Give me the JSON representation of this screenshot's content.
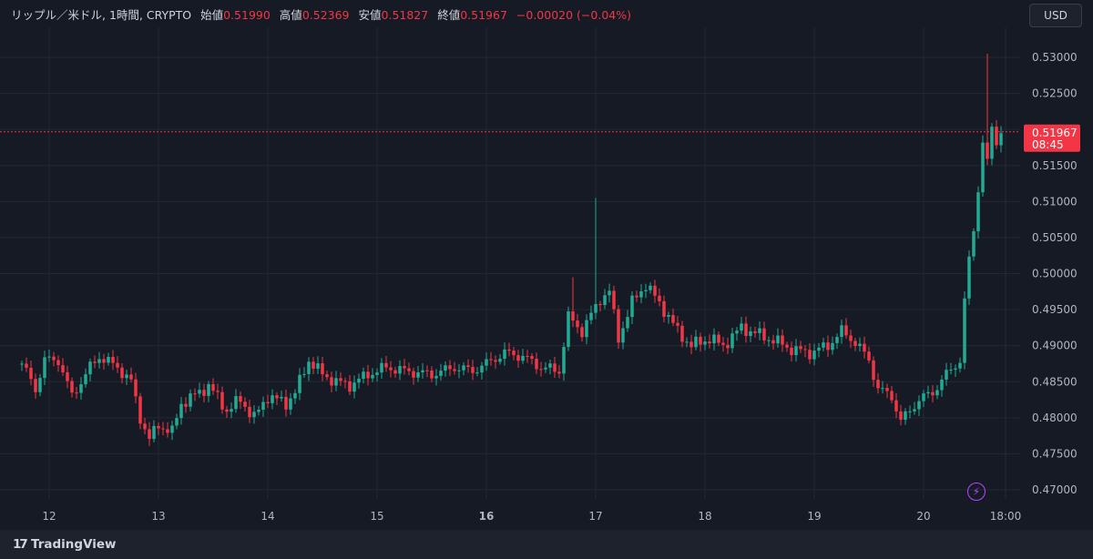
{
  "header": {
    "symbol": "リップル／米ドル, 1時間, CRYPTO",
    "open_label": "始値",
    "open_value": "0.51990",
    "high_label": "高値",
    "high_value": "0.52369",
    "low_label": "安値",
    "low_value": "0.51827",
    "close_label": "終値",
    "close_value": "0.51967",
    "change": "−0.00020 (−0.04%)"
  },
  "currency_button": "USD",
  "brand": "TradingView",
  "brand_logo": "17",
  "icons": {
    "bolt": "lightning-icon"
  },
  "colors": {
    "up": "#22ab94",
    "down": "#f23645",
    "background": "#161a25",
    "grid": "#242833",
    "last_price_tag": "#f23645"
  },
  "chart_data": {
    "type": "candlestick",
    "timeframe": "1h",
    "y_ticks": [
      "0.53000",
      "0.52500",
      "0.52000",
      "0.51500",
      "0.51000",
      "0.50500",
      "0.50000",
      "0.49500",
      "0.49000",
      "0.48500",
      "0.48000",
      "0.47500",
      "0.47000"
    ],
    "ylim": [
      0.4685,
      0.5345
    ],
    "x_ticks": [
      {
        "label": "12",
        "bold": false,
        "hour": 6
      },
      {
        "label": "13",
        "bold": false,
        "hour": 30
      },
      {
        "label": "14",
        "bold": false,
        "hour": 54
      },
      {
        "label": "15",
        "bold": false,
        "hour": 78
      },
      {
        "label": "16",
        "bold": true,
        "hour": 102
      },
      {
        "label": "17",
        "bold": false,
        "hour": 126
      },
      {
        "label": "18",
        "bold": false,
        "hour": 150
      },
      {
        "label": "19",
        "bold": false,
        "hour": 174
      },
      {
        "label": "20",
        "bold": false,
        "hour": 198
      },
      {
        "label": "18:00",
        "bold": false,
        "hour": 216
      }
    ],
    "last_price": "0.51967",
    "countdown": "08:45",
    "anchors": [
      {
        "t": 0,
        "p": 0.4875
      },
      {
        "t": 3,
        "p": 0.484
      },
      {
        "t": 5,
        "p": 0.488
      },
      {
        "t": 8,
        "p": 0.488
      },
      {
        "t": 11,
        "p": 0.483
      },
      {
        "t": 15,
        "p": 0.487
      },
      {
        "t": 17,
        "p": 0.4885
      },
      {
        "t": 21,
        "p": 0.487
      },
      {
        "t": 24,
        "p": 0.485
      },
      {
        "t": 26,
        "p": 0.48
      },
      {
        "t": 28,
        "p": 0.477
      },
      {
        "t": 30,
        "p": 0.479
      },
      {
        "t": 33,
        "p": 0.478
      },
      {
        "t": 35,
        "p": 0.482
      },
      {
        "t": 39,
        "p": 0.4835
      },
      {
        "t": 41,
        "p": 0.4845
      },
      {
        "t": 45,
        "p": 0.481
      },
      {
        "t": 48,
        "p": 0.4825
      },
      {
        "t": 51,
        "p": 0.48
      },
      {
        "t": 54,
        "p": 0.483
      },
      {
        "t": 58,
        "p": 0.482
      },
      {
        "t": 60,
        "p": 0.4835
      },
      {
        "t": 63,
        "p": 0.488
      },
      {
        "t": 66,
        "p": 0.486
      },
      {
        "t": 69,
        "p": 0.485
      },
      {
        "t": 72,
        "p": 0.4845
      },
      {
        "t": 76,
        "p": 0.486
      },
      {
        "t": 80,
        "p": 0.487
      },
      {
        "t": 84,
        "p": 0.4865
      },
      {
        "t": 90,
        "p": 0.486
      },
      {
        "t": 95,
        "p": 0.487
      },
      {
        "t": 99,
        "p": 0.4865
      },
      {
        "t": 102,
        "p": 0.4875
      },
      {
        "t": 106,
        "p": 0.489
      },
      {
        "t": 110,
        "p": 0.4885
      },
      {
        "t": 114,
        "p": 0.487
      },
      {
        "t": 118,
        "p": 0.4865
      },
      {
        "t": 120,
        "p": 0.494
      },
      {
        "t": 123,
        "p": 0.492
      },
      {
        "t": 127,
        "p": 0.4965
      },
      {
        "t": 129,
        "p": 0.4975
      },
      {
        "t": 131,
        "p": 0.491
      },
      {
        "t": 134,
        "p": 0.496
      },
      {
        "t": 137,
        "p": 0.4985
      },
      {
        "t": 141,
        "p": 0.495
      },
      {
        "t": 144,
        "p": 0.492
      },
      {
        "t": 147,
        "p": 0.49
      },
      {
        "t": 151,
        "p": 0.491
      },
      {
        "t": 154,
        "p": 0.49
      },
      {
        "t": 158,
        "p": 0.4925
      },
      {
        "t": 162,
        "p": 0.4915
      },
      {
        "t": 166,
        "p": 0.4905
      },
      {
        "t": 169,
        "p": 0.4895
      },
      {
        "t": 173,
        "p": 0.489
      },
      {
        "t": 177,
        "p": 0.49
      },
      {
        "t": 180,
        "p": 0.492
      },
      {
        "t": 183,
        "p": 0.4905
      },
      {
        "t": 186,
        "p": 0.488
      },
      {
        "t": 188,
        "p": 0.484
      },
      {
        "t": 191,
        "p": 0.483
      },
      {
        "t": 193,
        "p": 0.4795
      },
      {
        "t": 195,
        "p": 0.481
      },
      {
        "t": 197,
        "p": 0.4825
      },
      {
        "t": 200,
        "p": 0.4835
      },
      {
        "t": 203,
        "p": 0.486
      },
      {
        "t": 206,
        "p": 0.488
      },
      {
        "t": 207,
        "p": 0.496
      },
      {
        "t": 208,
        "p": 0.502
      },
      {
        "t": 209,
        "p": 0.506
      },
      {
        "t": 210,
        "p": 0.512
      },
      {
        "t": 211,
        "p": 0.518
      },
      {
        "t": 212,
        "p": 0.5155
      },
      {
        "t": 213,
        "p": 0.52
      },
      {
        "t": 214,
        "p": 0.5185
      },
      {
        "t": 215,
        "p": 0.5197
      }
    ],
    "spikes": [
      {
        "t": 121,
        "high": 0.4995
      },
      {
        "t": 126,
        "high": 0.5105
      },
      {
        "t": 212,
        "high": 0.5305
      }
    ]
  }
}
